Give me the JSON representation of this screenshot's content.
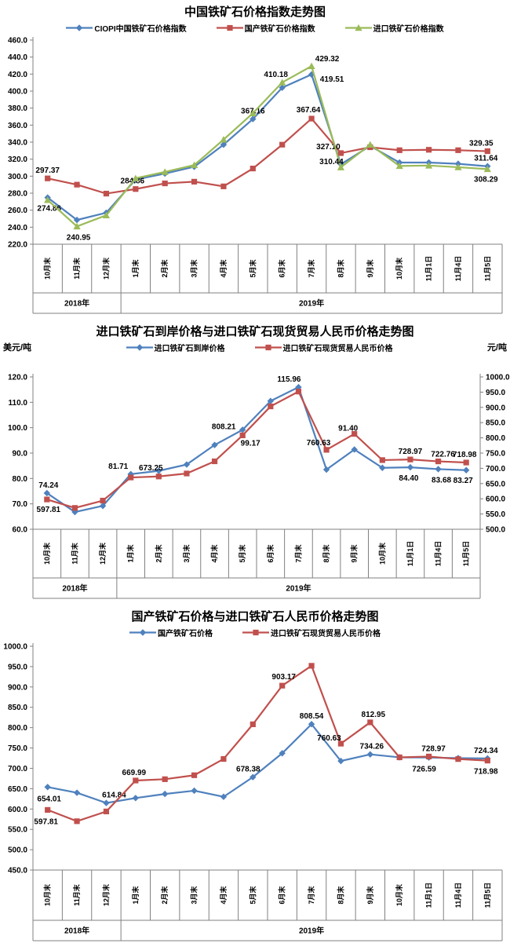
{
  "chart_data": [
    {
      "id": "ciopi-price-index",
      "type": "line",
      "title": "中国铁矿石价格指数走势图",
      "y_axis": {
        "min": 220,
        "max": 460,
        "step": 20
      },
      "categories": [
        "10月末",
        "11月末",
        "12月末",
        "1月末",
        "2月末",
        "3月末",
        "4月末",
        "5月末",
        "6月末",
        "7月末",
        "8月末",
        "9月末",
        "10月末",
        "11月1日",
        "11月4日",
        "11月5日"
      ],
      "year_groups": [
        {
          "label": "2018年",
          "span": 3
        },
        {
          "label": "2019年",
          "span": 13
        }
      ],
      "grid": false,
      "legend_position": "top",
      "series": [
        {
          "name": "CIOPI中国铁矿石价格指数",
          "color": "#4F81BD",
          "marker": "diamond",
          "axis": "left",
          "values": [
            274.86,
            248.5,
            257.0,
            296.0,
            303.0,
            311.0,
            337.0,
            367.16,
            404.0,
            419.51,
            314.0,
            335.5,
            316.0,
            316.0,
            314.5,
            311.64
          ],
          "labels": [
            {
              "i": 0,
              "t": "274.86",
              "dx": 2,
              "dy": 17
            },
            {
              "i": 7,
              "t": "367.16",
              "dx": 0,
              "dy": -7
            },
            {
              "i": 9,
              "t": "419.51",
              "dx": 26,
              "dy": 9
            },
            {
              "i": 15,
              "t": "311.64",
              "dx": -2,
              "dy": -7
            }
          ]
        },
        {
          "name": "国产铁矿石价格指数",
          "color": "#C0504D",
          "marker": "square",
          "axis": "left",
          "values": [
            297.37,
            290.0,
            279.5,
            284.86,
            291.5,
            293.5,
            288.0,
            309.0,
            337.0,
            367.64,
            327.1,
            334.0,
            330.5,
            331.0,
            330.5,
            329.35
          ],
          "labels": [
            {
              "i": 0,
              "t": "297.37",
              "dx": 0,
              "dy": -7
            },
            {
              "i": 3,
              "t": "284.86",
              "dx": -4,
              "dy": -7
            },
            {
              "i": 9,
              "t": "367.64",
              "dx": -4,
              "dy": -8
            },
            {
              "i": 10,
              "t": "327.10",
              "dx": -16,
              "dy": -5
            },
            {
              "i": 15,
              "t": "329.35",
              "dx": -8,
              "dy": -7
            }
          ]
        },
        {
          "name": "进口铁矿石价格指数",
          "color": "#9BBB59",
          "marker": "triangle",
          "axis": "left",
          "values": [
            272.0,
            240.95,
            254.0,
            297.5,
            305.0,
            313.0,
            343.0,
            374.0,
            410.18,
            429.32,
            310.44,
            337.0,
            312.0,
            312.5,
            310.5,
            308.29
          ],
          "labels": [
            {
              "i": 1,
              "t": "240.95",
              "dx": 2,
              "dy": 17
            },
            {
              "i": 8,
              "t": "410.18",
              "dx": -8,
              "dy": -7
            },
            {
              "i": 9,
              "t": "429.32",
              "dx": 20,
              "dy": -6
            },
            {
              "i": 10,
              "t": "310.44",
              "dx": -12,
              "dy": -4
            },
            {
              "i": 15,
              "t": "308.29",
              "dx": -2,
              "dy": 16
            }
          ]
        }
      ]
    },
    {
      "id": "import-cfr-vs-rmb-spot",
      "type": "line",
      "title": "进口铁矿石到岸价格与进口铁矿石现货贸易人民币价格走势图",
      "y_axis": {
        "min": 60,
        "max": 120,
        "step": 10,
        "title": "美元/吨"
      },
      "y2_axis": {
        "min": 500,
        "max": 1000,
        "step": 50,
        "title": "元/吨"
      },
      "categories": [
        "10月末",
        "11月末",
        "12月末",
        "1月末",
        "2月末",
        "3月末",
        "4月末",
        "5月末",
        "6月末",
        "7月末",
        "8月末",
        "9月末",
        "10月末",
        "11月1日",
        "11月4日",
        "11月5日"
      ],
      "year_groups": [
        {
          "label": "2018年",
          "span": 3
        },
        {
          "label": "2019年",
          "span": 13
        }
      ],
      "grid": false,
      "legend_position": "top",
      "series": [
        {
          "name": "进口铁矿石到岸价格",
          "color": "#4F81BD",
          "marker": "diamond",
          "axis": "left",
          "values": [
            74.24,
            66.8,
            69.2,
            81.71,
            83.0,
            85.5,
            93.2,
            99.17,
            110.5,
            115.96,
            83.5,
            91.4,
            84.2,
            84.4,
            83.68,
            83.27
          ],
          "labels": [
            {
              "i": 0,
              "t": "74.24",
              "dx": 2,
              "dy": -7
            },
            {
              "i": 3,
              "t": "81.71",
              "dx": -16,
              "dy": -7
            },
            {
              "i": 7,
              "t": "99.17",
              "dx": 10,
              "dy": 20
            },
            {
              "i": 9,
              "t": "115.96",
              "dx": -12,
              "dy": -7
            },
            {
              "i": 11,
              "t": "91.40",
              "dx": -8,
              "dy": -24
            },
            {
              "i": 13,
              "t": "84.40",
              "dx": -2,
              "dy": 17
            },
            {
              "i": 14,
              "t": "83.68",
              "dx": 4,
              "dy": 17
            },
            {
              "i": 15,
              "t": "83.27",
              "dx": -4,
              "dy": 16
            }
          ]
        },
        {
          "name": "进口铁矿石现货贸易人民币价格",
          "color": "#C0504D",
          "marker": "square",
          "axis": "right",
          "values": [
            597.81,
            570.0,
            594.0,
            669.99,
            673.25,
            683.0,
            723.0,
            808.21,
            903.17,
            952.0,
            760.63,
            812.95,
            727.0,
            728.97,
            722.76,
            718.98
          ],
          "labels": [
            {
              "i": 0,
              "t": "597.81",
              "dx": 2,
              "dy": 16
            },
            {
              "i": 4,
              "t": "673.25",
              "dx": -10,
              "dy": -8
            },
            {
              "i": 7,
              "t": "808.21",
              "dx": -24,
              "dy": -8
            },
            {
              "i": 10,
              "t": "760.63",
              "dx": -10,
              "dy": -6
            },
            {
              "i": 13,
              "t": "728.97",
              "dx": 0,
              "dy": -7
            },
            {
              "i": 14,
              "t": "722.76",
              "dx": 6,
              "dy": -6
            },
            {
              "i": 15,
              "t": "718.98",
              "dx": -2,
              "dy": -7
            }
          ]
        }
      ]
    },
    {
      "id": "domestic-vs-import-rmb",
      "type": "line",
      "title": "国产铁矿石价格与进口铁矿石人民币价格走势图",
      "y_axis": {
        "min": 450,
        "max": 1000,
        "step": 50
      },
      "categories": [
        "10月末",
        "11月末",
        "12月末",
        "1月末",
        "2月末",
        "3月末",
        "4月末",
        "5月末",
        "6月末",
        "7月末",
        "8月末",
        "9月末",
        "10月末",
        "11月1日",
        "11月4日",
        "11月5日"
      ],
      "year_groups": [
        {
          "label": "2018年",
          "span": 3
        },
        {
          "label": "2019年",
          "span": 13
        }
      ],
      "grid": false,
      "legend_position": "top",
      "series": [
        {
          "name": "国产铁矿石价格",
          "color": "#4F81BD",
          "marker": "diamond",
          "axis": "left",
          "values": [
            654.01,
            640.0,
            614.84,
            627.0,
            637.0,
            645.0,
            630.0,
            678.38,
            737.0,
            808.54,
            718.0,
            734.26,
            727.0,
            726.59,
            725.0,
            724.34
          ],
          "labels": [
            {
              "i": 0,
              "t": "654.01",
              "dx": 2,
              "dy": 18
            },
            {
              "i": 2,
              "t": "614.84",
              "dx": 10,
              "dy": -7
            },
            {
              "i": 7,
              "t": "678.38",
              "dx": -6,
              "dy": -7
            },
            {
              "i": 9,
              "t": "808.54",
              "dx": 0,
              "dy": -7
            },
            {
              "i": 11,
              "t": "734.26",
              "dx": 2,
              "dy": -7
            },
            {
              "i": 13,
              "t": "726.59",
              "dx": -6,
              "dy": 18
            },
            {
              "i": 15,
              "t": "724.34",
              "dx": -2,
              "dy": -7
            }
          ]
        },
        {
          "name": "进口铁矿石现货贸易人民币价格",
          "color": "#C0504D",
          "marker": "square",
          "axis": "left",
          "values": [
            597.81,
            570.0,
            594.0,
            669.99,
            673.25,
            683.0,
            723.0,
            808.21,
            903.17,
            952.0,
            760.63,
            812.95,
            727.0,
            728.97,
            722.76,
            718.98
          ],
          "labels": [
            {
              "i": 0,
              "t": "597.81",
              "dx": -2,
              "dy": 18
            },
            {
              "i": 3,
              "t": "669.99",
              "dx": -2,
              "dy": -7
            },
            {
              "i": 8,
              "t": "903.17",
              "dx": 2,
              "dy": -8
            },
            {
              "i": 10,
              "t": "760.63",
              "dx": -15,
              "dy": -4
            },
            {
              "i": 11,
              "t": "812.95",
              "dx": 4,
              "dy": -7
            },
            {
              "i": 13,
              "t": "728.97",
              "dx": 6,
              "dy": -7
            },
            {
              "i": 15,
              "t": "718.98",
              "dx": -2,
              "dy": 17
            }
          ]
        }
      ]
    }
  ]
}
